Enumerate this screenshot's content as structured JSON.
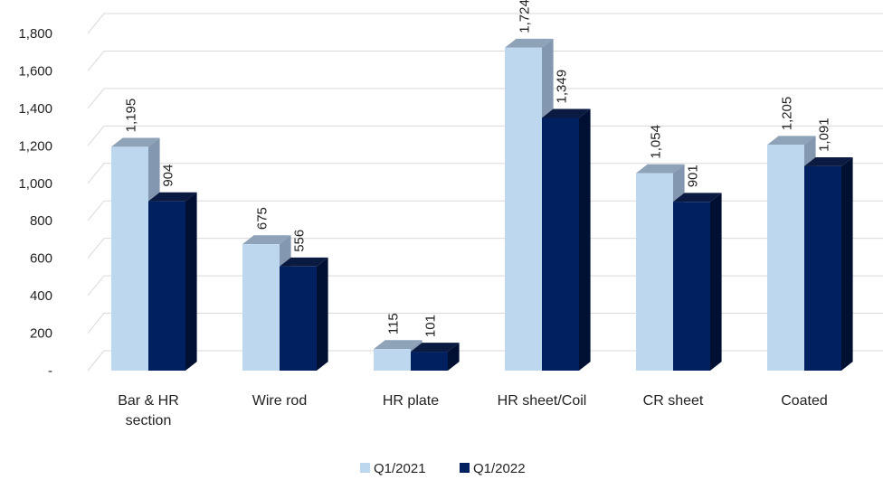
{
  "chart_data": {
    "type": "bar",
    "categories": [
      [
        "Bar & HR",
        "section"
      ],
      [
        "Wire rod"
      ],
      [
        "HR plate"
      ],
      [
        "HR sheet/Coil"
      ],
      [
        "CR sheet"
      ],
      [
        "Coated"
      ]
    ],
    "series": [
      {
        "name": "Q1/2021",
        "values": [
          1195,
          675,
          115,
          1724,
          1054,
          1205
        ],
        "labels": [
          "1,195",
          "675",
          "115",
          "1,724",
          "1,054",
          "1,205"
        ],
        "color": "#bdd7ee",
        "side_color": "#8497b0",
        "top_color": "#8ea2b8"
      },
      {
        "name": "Q1/2022",
        "values": [
          904,
          556,
          101,
          1349,
          901,
          1091
        ],
        "labels": [
          "904",
          "556",
          "101",
          "1,349",
          "901",
          "1,091"
        ],
        "color": "#002060",
        "side_color": "#001033",
        "top_color": "#0a1a40"
      }
    ],
    "ylim": [
      0,
      1800
    ],
    "yticks": [
      0,
      200,
      400,
      600,
      800,
      1000,
      1200,
      1400,
      1600,
      1800
    ],
    "ytick_labels": [
      "-",
      "200",
      "400",
      "600",
      "800",
      "1,000",
      "1,200",
      "1,400",
      "1,600",
      "1,800"
    ],
    "grid": true,
    "style": "3d-clustered-column",
    "legend_position": "bottom"
  }
}
